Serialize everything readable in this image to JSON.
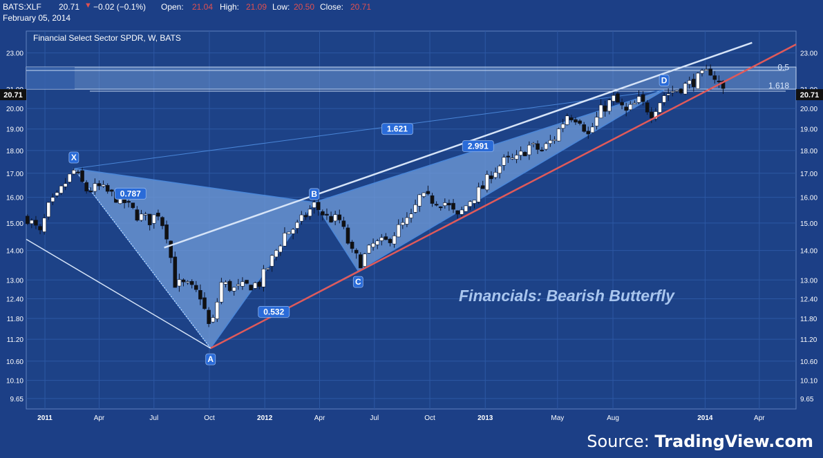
{
  "header": {
    "symbol": "BATS:XLF",
    "last": "20.71",
    "change_arrow": "▼",
    "change": "−0.02 (−0.1%)",
    "open_label": "Open:",
    "open": "21.04",
    "high_label": "High:",
    "high": "21.09",
    "low_label": "Low:",
    "low": "20.50",
    "close_label": "Close:",
    "close": "20.71",
    "date": "February 05, 2014"
  },
  "colors": {
    "background": "#1c3f86",
    "plot_background": "#1d4287",
    "grid": "#2d58a4",
    "down_candle": "#111111",
    "up_candle": "#ffffff",
    "pattern_fill": "#6d97d4",
    "pattern_edge": "#4a86d8",
    "trendline_red": "#e05a5a",
    "trendline_white": "#d6e4f8",
    "label_blue": "#2a6bd8",
    "annotation_text": "#a9c6ee"
  },
  "source": {
    "prefix": "Source: ",
    "brand": "TradingView.com"
  },
  "chart_data": {
    "type": "candlestick",
    "title": "Financial Select Sector SPDR, W, BATS",
    "annotation": "Financials: Bearish Butterfly",
    "last_price_label": "20.71",
    "y_scale": "log",
    "ylim": [
      9.4,
      24.3
    ],
    "y_ticks": [
      "23.00",
      "21.00",
      "20.00",
      "19.00",
      "18.00",
      "17.00",
      "16.00",
      "15.00",
      "14.00",
      "13.00",
      "12.40",
      "11.80",
      "11.20",
      "10.60",
      "10.10",
      "9.65"
    ],
    "y_tick_values": [
      23.0,
      21.0,
      20.0,
      19.0,
      18.0,
      17.0,
      16.0,
      15.0,
      14.0,
      13.0,
      12.4,
      11.8,
      11.2,
      10.6,
      10.1,
      9.65
    ],
    "xlim": [
      "2010-12-01",
      "2014-06-01"
    ],
    "x_ticks": [
      {
        "label": "2011",
        "date": "2011-01-01",
        "bold": true
      },
      {
        "label": "Apr",
        "date": "2011-04-01",
        "bold": false
      },
      {
        "label": "Jul",
        "date": "2011-07-01",
        "bold": false
      },
      {
        "label": "Oct",
        "date": "2011-10-01",
        "bold": false
      },
      {
        "label": "2012",
        "date": "2012-01-01",
        "bold": true
      },
      {
        "label": "Apr",
        "date": "2012-04-01",
        "bold": false
      },
      {
        "label": "Jul",
        "date": "2012-07-01",
        "bold": false
      },
      {
        "label": "Oct",
        "date": "2012-10-01",
        "bold": false
      },
      {
        "label": "2013",
        "date": "2013-01-01",
        "bold": true
      },
      {
        "label": "May",
        "date": "2013-05-01",
        "bold": false
      },
      {
        "label": "Aug",
        "date": "2013-08-01",
        "bold": false
      },
      {
        "label": "2014",
        "date": "2014-01-01",
        "bold": true
      },
      {
        "label": "Apr",
        "date": "2014-04-01",
        "bold": false
      }
    ],
    "pattern_points": [
      {
        "name": "X",
        "date": "2011-02-18",
        "price": 17.2
      },
      {
        "name": "A",
        "date": "2011-10-03",
        "price": 10.95
      },
      {
        "name": "B",
        "date": "2012-03-23",
        "price": 15.8
      },
      {
        "name": "C",
        "date": "2012-06-04",
        "price": 13.3
      },
      {
        "name": "D",
        "date": "2013-10-25",
        "price": 20.95
      }
    ],
    "ratios": [
      {
        "label": "0.787",
        "date": "2011-05-23",
        "price": 16.15
      },
      {
        "label": "0.532",
        "date": "2012-01-16",
        "price": 12.0
      },
      {
        "label": "2.991",
        "date": "2012-12-20",
        "price": 18.2
      },
      {
        "label": "1.621",
        "date": "2012-08-08",
        "price": 19.0
      }
    ],
    "fib_labels": [
      {
        "label": "0.5",
        "price": 22.1
      },
      {
        "label": "1.618",
        "price": 21.0
      }
    ],
    "resistance_band": {
      "from": 21.0,
      "to": 22.2
    },
    "trendlines": [
      {
        "name": "red-support",
        "points": [
          [
            "2011-10-03",
            10.95
          ],
          [
            "2014-06-01",
            23.5
          ]
        ]
      },
      {
        "name": "white-upper",
        "points": [
          [
            "2011-07-18",
            14.1
          ],
          [
            "2014-03-20",
            23.6
          ]
        ]
      },
      {
        "name": "white-lower-left",
        "points": [
          [
            "2010-12-01",
            14.4
          ],
          [
            "2011-10-03",
            10.95
          ]
        ]
      }
    ],
    "anchors": [
      [
        "2010-12-03",
        15.2
      ],
      [
        "2010-12-24",
        14.6
      ],
      [
        "2011-01-07",
        15.6
      ],
      [
        "2011-01-21",
        16.0
      ],
      [
        "2011-02-04",
        16.6
      ],
      [
        "2011-02-18",
        17.1
      ],
      [
        "2011-03-11",
        16.3
      ],
      [
        "2011-04-01",
        16.4
      ],
      [
        "2011-04-22",
        16.1
      ],
      [
        "2011-05-13",
        15.8
      ],
      [
        "2011-06-03",
        15.3
      ],
      [
        "2011-06-24",
        15.1
      ],
      [
        "2011-07-08",
        15.4
      ],
      [
        "2011-07-22",
        14.6
      ],
      [
        "2011-08-05",
        12.9
      ],
      [
        "2011-08-26",
        12.8
      ],
      [
        "2011-09-16",
        12.5
      ],
      [
        "2011-10-03",
        11.4
      ],
      [
        "2011-10-21",
        12.9
      ],
      [
        "2011-11-11",
        12.7
      ],
      [
        "2011-12-02",
        12.8
      ],
      [
        "2011-12-23",
        12.9
      ],
      [
        "2012-01-13",
        13.7
      ],
      [
        "2012-02-03",
        14.6
      ],
      [
        "2012-02-24",
        14.9
      ],
      [
        "2012-03-16",
        15.5
      ],
      [
        "2012-03-23",
        15.7
      ],
      [
        "2012-04-13",
        15.2
      ],
      [
        "2012-05-04",
        15.1
      ],
      [
        "2012-05-25",
        13.9
      ],
      [
        "2012-06-08",
        13.6
      ],
      [
        "2012-06-29",
        14.2
      ],
      [
        "2012-07-20",
        14.3
      ],
      [
        "2012-08-10",
        14.8
      ],
      [
        "2012-08-31",
        15.2
      ],
      [
        "2012-09-14",
        16.0
      ],
      [
        "2012-10-05",
        15.9
      ],
      [
        "2012-10-26",
        15.8
      ],
      [
        "2012-11-16",
        15.2
      ],
      [
        "2012-12-07",
        15.9
      ],
      [
        "2012-12-28",
        16.4
      ],
      [
        "2013-01-11",
        17.0
      ],
      [
        "2013-02-01",
        17.5
      ],
      [
        "2013-02-22",
        17.6
      ],
      [
        "2013-03-15",
        18.2
      ],
      [
        "2013-04-05",
        18.0
      ],
      [
        "2013-04-26",
        18.6
      ],
      [
        "2013-05-17",
        19.7
      ],
      [
        "2013-06-07",
        19.5
      ],
      [
        "2013-06-21",
        18.7
      ],
      [
        "2013-07-12",
        19.9
      ],
      [
        "2013-08-02",
        20.5
      ],
      [
        "2013-08-23",
        19.8
      ],
      [
        "2013-09-13",
        20.4
      ],
      [
        "2013-10-04",
        19.8
      ],
      [
        "2013-10-25",
        20.7
      ],
      [
        "2013-11-15",
        21.0
      ],
      [
        "2013-12-06",
        21.3
      ],
      [
        "2013-12-27",
        21.7
      ],
      [
        "2014-01-10",
        22.0
      ],
      [
        "2014-01-24",
        21.3
      ],
      [
        "2014-02-05",
        20.71
      ]
    ]
  }
}
